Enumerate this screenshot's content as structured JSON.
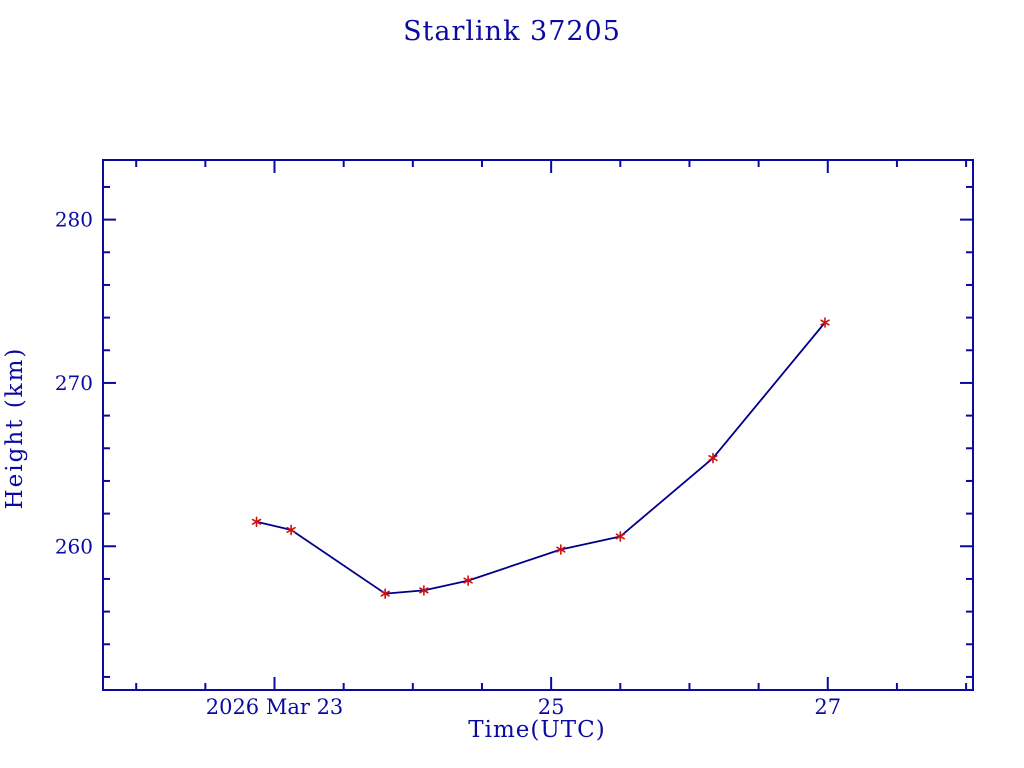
{
  "page": {
    "background_color": "#FFFFFF"
  },
  "colors": {
    "axis_and_text": "#0A0AA0",
    "data_line": "#00008B",
    "marker": "#CC1111"
  },
  "chart_data": {
    "type": "line",
    "title": "Starlink 37205",
    "xlabel": "Time(UTC)",
    "ylabel": "Height (km)",
    "x_unit": "day of March 2026 (UTC)",
    "x": [
      22.87,
      23.12,
      23.8,
      24.08,
      24.4,
      25.07,
      25.5,
      26.17,
      26.98
    ],
    "y": [
      261.5,
      261.0,
      257.1,
      257.3,
      257.9,
      259.8,
      260.6,
      265.4,
      273.7
    ],
    "series_name": "Starlink 37205 height",
    "xlim": [
      21.76,
      28.05
    ],
    "ylim": [
      251.2,
      283.65
    ],
    "x_major_ticks": [
      {
        "value": 23,
        "label": "2026 Mar 23"
      },
      {
        "value": 25,
        "label": "25"
      },
      {
        "value": 27,
        "label": "27"
      }
    ],
    "x_minor_step": 0.5,
    "y_major_ticks": [
      {
        "value": 260,
        "label": "260"
      },
      {
        "value": 270,
        "label": "270"
      },
      {
        "value": 280,
        "label": "280"
      }
    ],
    "y_minor_step": 2,
    "grid": false,
    "legend": false,
    "marker_style": "asterisk",
    "tick_direction": "inward, mirrored on all four sides"
  }
}
